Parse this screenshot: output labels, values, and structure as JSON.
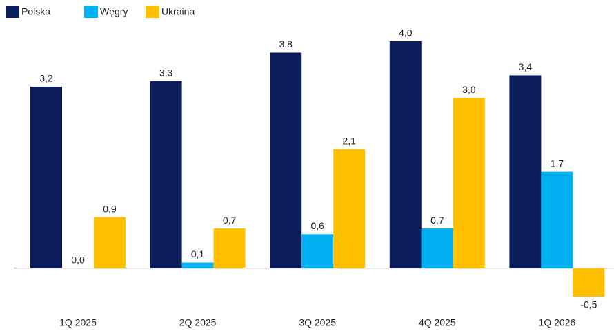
{
  "chart_data": {
    "type": "bar",
    "categories": [
      "1Q 2025",
      "2Q 2025",
      "3Q 2025",
      "4Q 2025",
      "1Q 2026"
    ],
    "series": [
      {
        "name": "Polska",
        "color": "#0b1d5a",
        "values": [
          3.2,
          3.3,
          3.8,
          4.0,
          3.4
        ],
        "value_labels": [
          "3,2",
          "3,3",
          "3,8",
          "4,0",
          "3,4"
        ]
      },
      {
        "name": "Węgry",
        "color": "#00b0f0",
        "values": [
          0.0,
          0.1,
          0.6,
          0.7,
          1.7
        ],
        "value_labels": [
          "0,0",
          "0,1",
          "0,6",
          "0,7",
          "1,7"
        ]
      },
      {
        "name": "Ukraina",
        "color": "#ffc000",
        "values": [
          0.9,
          0.7,
          2.1,
          3.0,
          -0.5
        ],
        "value_labels": [
          "0,9",
          "0,7",
          "2,1",
          "3,0",
          "-0,5"
        ]
      }
    ],
    "legend": "top-left"
  }
}
